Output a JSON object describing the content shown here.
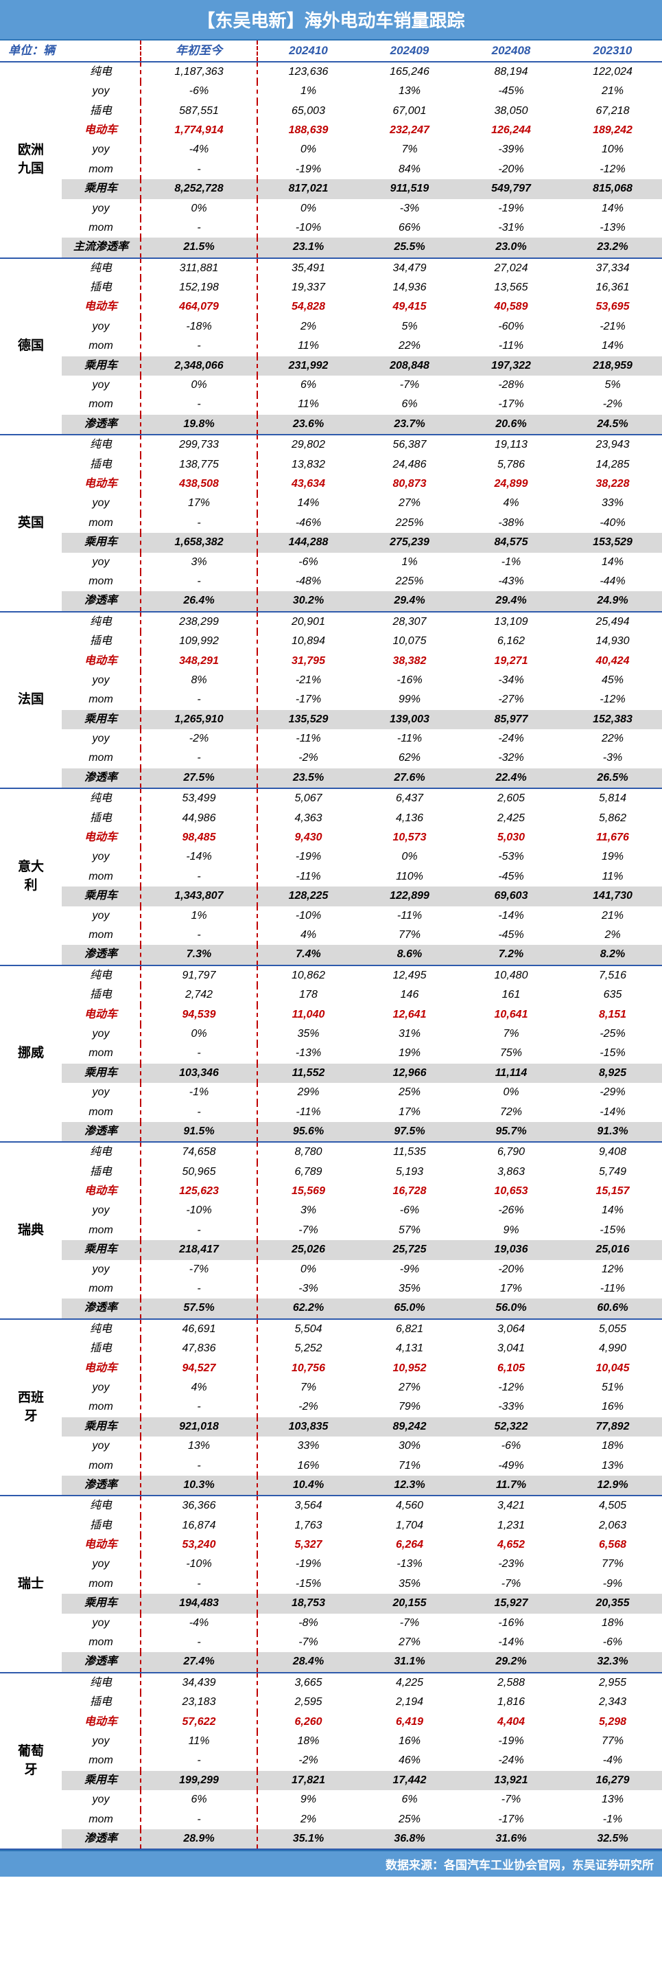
{
  "title": "【东吴电新】海外电动车销量跟踪",
  "unit_label": "单位：辆",
  "columns": [
    "年初至今",
    "202410",
    "202409",
    "202408",
    "202310"
  ],
  "footer": "数据来源：各国汽车工业协会官网，东吴证券研究所",
  "metrics_order": [
    "纯电",
    "yoy",
    "插电",
    "电动车",
    "yoy",
    "mom",
    "乘用车",
    "yoy",
    "mom",
    "主流渗透率"
  ],
  "regions": [
    {
      "name": "欧洲九国",
      "rows": [
        {
          "metric": "纯电",
          "vals": [
            "1,187,363",
            "123,636",
            "165,246",
            "88,194",
            "122,024"
          ],
          "style": ""
        },
        {
          "metric": "yoy",
          "vals": [
            "-6%",
            "1%",
            "13%",
            "-45%",
            "21%"
          ],
          "style": ""
        },
        {
          "metric": "插电",
          "vals": [
            "587,551",
            "65,003",
            "67,001",
            "38,050",
            "67,218"
          ],
          "style": ""
        },
        {
          "metric": "电动车",
          "vals": [
            "1,774,914",
            "188,639",
            "232,247",
            "126,244",
            "189,242"
          ],
          "style": "red"
        },
        {
          "metric": "yoy",
          "vals": [
            "-4%",
            "0%",
            "7%",
            "-39%",
            "10%"
          ],
          "style": ""
        },
        {
          "metric": "mom",
          "vals": [
            "-",
            "-19%",
            "84%",
            "-20%",
            "-12%"
          ],
          "style": ""
        },
        {
          "metric": "乘用车",
          "vals": [
            "8,252,728",
            "817,021",
            "911,519",
            "549,797",
            "815,068"
          ],
          "style": "gray"
        },
        {
          "metric": "yoy",
          "vals": [
            "0%",
            "0%",
            "-3%",
            "-19%",
            "14%"
          ],
          "style": ""
        },
        {
          "metric": "mom",
          "vals": [
            "-",
            "-10%",
            "66%",
            "-31%",
            "-13%"
          ],
          "style": ""
        },
        {
          "metric": "主流渗透率",
          "vals": [
            "21.5%",
            "23.1%",
            "25.5%",
            "23.0%",
            "23.2%"
          ],
          "style": "pen"
        }
      ]
    },
    {
      "name": "德国",
      "rows": [
        {
          "metric": "纯电",
          "vals": [
            "311,881",
            "35,491",
            "34,479",
            "27,024",
            "37,334"
          ],
          "style": ""
        },
        {
          "metric": "插电",
          "vals": [
            "152,198",
            "19,337",
            "14,936",
            "13,565",
            "16,361"
          ],
          "style": ""
        },
        {
          "metric": "电动车",
          "vals": [
            "464,079",
            "54,828",
            "49,415",
            "40,589",
            "53,695"
          ],
          "style": "red"
        },
        {
          "metric": "yoy",
          "vals": [
            "-18%",
            "2%",
            "5%",
            "-60%",
            "-21%"
          ],
          "style": ""
        },
        {
          "metric": "mom",
          "vals": [
            "-",
            "11%",
            "22%",
            "-11%",
            "14%"
          ],
          "style": ""
        },
        {
          "metric": "乘用车",
          "vals": [
            "2,348,066",
            "231,992",
            "208,848",
            "197,322",
            "218,959"
          ],
          "style": "gray"
        },
        {
          "metric": "yoy",
          "vals": [
            "0%",
            "6%",
            "-7%",
            "-28%",
            "5%"
          ],
          "style": ""
        },
        {
          "metric": "mom",
          "vals": [
            "-",
            "11%",
            "6%",
            "-17%",
            "-2%"
          ],
          "style": ""
        },
        {
          "metric": "渗透率",
          "vals": [
            "19.8%",
            "23.6%",
            "23.7%",
            "20.6%",
            "24.5%"
          ],
          "style": "pen"
        }
      ]
    },
    {
      "name": "英国",
      "rows": [
        {
          "metric": "纯电",
          "vals": [
            "299,733",
            "29,802",
            "56,387",
            "19,113",
            "23,943"
          ],
          "style": ""
        },
        {
          "metric": "插电",
          "vals": [
            "138,775",
            "13,832",
            "24,486",
            "5,786",
            "14,285"
          ],
          "style": ""
        },
        {
          "metric": "电动车",
          "vals": [
            "438,508",
            "43,634",
            "80,873",
            "24,899",
            "38,228"
          ],
          "style": "red"
        },
        {
          "metric": "yoy",
          "vals": [
            "17%",
            "14%",
            "27%",
            "4%",
            "33%"
          ],
          "style": ""
        },
        {
          "metric": "mom",
          "vals": [
            "-",
            "-46%",
            "225%",
            "-38%",
            "-40%"
          ],
          "style": ""
        },
        {
          "metric": "乘用车",
          "vals": [
            "1,658,382",
            "144,288",
            "275,239",
            "84,575",
            "153,529"
          ],
          "style": "gray"
        },
        {
          "metric": "yoy",
          "vals": [
            "3%",
            "-6%",
            "1%",
            "-1%",
            "14%"
          ],
          "style": ""
        },
        {
          "metric": "mom",
          "vals": [
            "-",
            "-48%",
            "225%",
            "-43%",
            "-44%"
          ],
          "style": ""
        },
        {
          "metric": "渗透率",
          "vals": [
            "26.4%",
            "30.2%",
            "29.4%",
            "29.4%",
            "24.9%"
          ],
          "style": "pen"
        }
      ]
    },
    {
      "name": "法国",
      "rows": [
        {
          "metric": "纯电",
          "vals": [
            "238,299",
            "20,901",
            "28,307",
            "13,109",
            "25,494"
          ],
          "style": ""
        },
        {
          "metric": "插电",
          "vals": [
            "109,992",
            "10,894",
            "10,075",
            "6,162",
            "14,930"
          ],
          "style": ""
        },
        {
          "metric": "电动车",
          "vals": [
            "348,291",
            "31,795",
            "38,382",
            "19,271",
            "40,424"
          ],
          "style": "red"
        },
        {
          "metric": "yoy",
          "vals": [
            "8%",
            "-21%",
            "-16%",
            "-34%",
            "45%"
          ],
          "style": ""
        },
        {
          "metric": "mom",
          "vals": [
            "-",
            "-17%",
            "99%",
            "-27%",
            "-12%"
          ],
          "style": ""
        },
        {
          "metric": "乘用车",
          "vals": [
            "1,265,910",
            "135,529",
            "139,003",
            "85,977",
            "152,383"
          ],
          "style": "gray"
        },
        {
          "metric": "yoy",
          "vals": [
            "-2%",
            "-11%",
            "-11%",
            "-24%",
            "22%"
          ],
          "style": ""
        },
        {
          "metric": "mom",
          "vals": [
            "-",
            "-2%",
            "62%",
            "-32%",
            "-3%"
          ],
          "style": ""
        },
        {
          "metric": "渗透率",
          "vals": [
            "27.5%",
            "23.5%",
            "27.6%",
            "22.4%",
            "26.5%"
          ],
          "style": "pen"
        }
      ]
    },
    {
      "name": "意大利",
      "rows": [
        {
          "metric": "纯电",
          "vals": [
            "53,499",
            "5,067",
            "6,437",
            "2,605",
            "5,814"
          ],
          "style": ""
        },
        {
          "metric": "插电",
          "vals": [
            "44,986",
            "4,363",
            "4,136",
            "2,425",
            "5,862"
          ],
          "style": ""
        },
        {
          "metric": "电动车",
          "vals": [
            "98,485",
            "9,430",
            "10,573",
            "5,030",
            "11,676"
          ],
          "style": "red"
        },
        {
          "metric": "yoy",
          "vals": [
            "-14%",
            "-19%",
            "0%",
            "-53%",
            "19%"
          ],
          "style": ""
        },
        {
          "metric": "mom",
          "vals": [
            "-",
            "-11%",
            "110%",
            "-45%",
            "11%"
          ],
          "style": ""
        },
        {
          "metric": "乘用车",
          "vals": [
            "1,343,807",
            "128,225",
            "122,899",
            "69,603",
            "141,730"
          ],
          "style": "gray"
        },
        {
          "metric": "yoy",
          "vals": [
            "1%",
            "-10%",
            "-11%",
            "-14%",
            "21%"
          ],
          "style": ""
        },
        {
          "metric": "mom",
          "vals": [
            "-",
            "4%",
            "77%",
            "-45%",
            "2%"
          ],
          "style": ""
        },
        {
          "metric": "渗透率",
          "vals": [
            "7.3%",
            "7.4%",
            "8.6%",
            "7.2%",
            "8.2%"
          ],
          "style": "pen"
        }
      ]
    },
    {
      "name": "挪威",
      "rows": [
        {
          "metric": "纯电",
          "vals": [
            "91,797",
            "10,862",
            "12,495",
            "10,480",
            "7,516"
          ],
          "style": ""
        },
        {
          "metric": "插电",
          "vals": [
            "2,742",
            "178",
            "146",
            "161",
            "635"
          ],
          "style": ""
        },
        {
          "metric": "电动车",
          "vals": [
            "94,539",
            "11,040",
            "12,641",
            "10,641",
            "8,151"
          ],
          "style": "red"
        },
        {
          "metric": "yoy",
          "vals": [
            "0%",
            "35%",
            "31%",
            "7%",
            "-25%"
          ],
          "style": ""
        },
        {
          "metric": "mom",
          "vals": [
            "-",
            "-13%",
            "19%",
            "75%",
            "-15%"
          ],
          "style": ""
        },
        {
          "metric": "乘用车",
          "vals": [
            "103,346",
            "11,552",
            "12,966",
            "11,114",
            "8,925"
          ],
          "style": "gray"
        },
        {
          "metric": "yoy",
          "vals": [
            "-1%",
            "29%",
            "25%",
            "0%",
            "-29%"
          ],
          "style": ""
        },
        {
          "metric": "mom",
          "vals": [
            "-",
            "-11%",
            "17%",
            "72%",
            "-14%"
          ],
          "style": ""
        },
        {
          "metric": "渗透率",
          "vals": [
            "91.5%",
            "95.6%",
            "97.5%",
            "95.7%",
            "91.3%"
          ],
          "style": "pen"
        }
      ]
    },
    {
      "name": "瑞典",
      "rows": [
        {
          "metric": "纯电",
          "vals": [
            "74,658",
            "8,780",
            "11,535",
            "6,790",
            "9,408"
          ],
          "style": ""
        },
        {
          "metric": "插电",
          "vals": [
            "50,965",
            "6,789",
            "5,193",
            "3,863",
            "5,749"
          ],
          "style": ""
        },
        {
          "metric": "电动车",
          "vals": [
            "125,623",
            "15,569",
            "16,728",
            "10,653",
            "15,157"
          ],
          "style": "red"
        },
        {
          "metric": "yoy",
          "vals": [
            "-10%",
            "3%",
            "-6%",
            "-26%",
            "14%"
          ],
          "style": ""
        },
        {
          "metric": "mom",
          "vals": [
            "-",
            "-7%",
            "57%",
            "9%",
            "-15%"
          ],
          "style": ""
        },
        {
          "metric": "乘用车",
          "vals": [
            "218,417",
            "25,026",
            "25,725",
            "19,036",
            "25,016"
          ],
          "style": "gray"
        },
        {
          "metric": "yoy",
          "vals": [
            "-7%",
            "0%",
            "-9%",
            "-20%",
            "12%"
          ],
          "style": ""
        },
        {
          "metric": "mom",
          "vals": [
            "-",
            "-3%",
            "35%",
            "17%",
            "-11%"
          ],
          "style": ""
        },
        {
          "metric": "渗透率",
          "vals": [
            "57.5%",
            "62.2%",
            "65.0%",
            "56.0%",
            "60.6%"
          ],
          "style": "pen"
        }
      ]
    },
    {
      "name": "西班牙",
      "rows": [
        {
          "metric": "纯电",
          "vals": [
            "46,691",
            "5,504",
            "6,821",
            "3,064",
            "5,055"
          ],
          "style": ""
        },
        {
          "metric": "插电",
          "vals": [
            "47,836",
            "5,252",
            "4,131",
            "3,041",
            "4,990"
          ],
          "style": ""
        },
        {
          "metric": "电动车",
          "vals": [
            "94,527",
            "10,756",
            "10,952",
            "6,105",
            "10,045"
          ],
          "style": "red"
        },
        {
          "metric": "yoy",
          "vals": [
            "4%",
            "7%",
            "27%",
            "-12%",
            "51%"
          ],
          "style": ""
        },
        {
          "metric": "mom",
          "vals": [
            "-",
            "-2%",
            "79%",
            "-33%",
            "16%"
          ],
          "style": ""
        },
        {
          "metric": "乘用车",
          "vals": [
            "921,018",
            "103,835",
            "89,242",
            "52,322",
            "77,892"
          ],
          "style": "gray"
        },
        {
          "metric": "yoy",
          "vals": [
            "13%",
            "33%",
            "30%",
            "-6%",
            "18%"
          ],
          "style": ""
        },
        {
          "metric": "mom",
          "vals": [
            "-",
            "16%",
            "71%",
            "-49%",
            "13%"
          ],
          "style": ""
        },
        {
          "metric": "渗透率",
          "vals": [
            "10.3%",
            "10.4%",
            "12.3%",
            "11.7%",
            "12.9%"
          ],
          "style": "pen"
        }
      ]
    },
    {
      "name": "瑞士",
      "rows": [
        {
          "metric": "纯电",
          "vals": [
            "36,366",
            "3,564",
            "4,560",
            "3,421",
            "4,505"
          ],
          "style": ""
        },
        {
          "metric": "插电",
          "vals": [
            "16,874",
            "1,763",
            "1,704",
            "1,231",
            "2,063"
          ],
          "style": ""
        },
        {
          "metric": "电动车",
          "vals": [
            "53,240",
            "5,327",
            "6,264",
            "4,652",
            "6,568"
          ],
          "style": "red"
        },
        {
          "metric": "yoy",
          "vals": [
            "-10%",
            "-19%",
            "-13%",
            "-23%",
            "77%"
          ],
          "style": ""
        },
        {
          "metric": "mom",
          "vals": [
            "-",
            "-15%",
            "35%",
            "-7%",
            "-9%"
          ],
          "style": ""
        },
        {
          "metric": "乘用车",
          "vals": [
            "194,483",
            "18,753",
            "20,155",
            "15,927",
            "20,355"
          ],
          "style": "gray"
        },
        {
          "metric": "yoy",
          "vals": [
            "-4%",
            "-8%",
            "-7%",
            "-16%",
            "18%"
          ],
          "style": ""
        },
        {
          "metric": "mom",
          "vals": [
            "-",
            "-7%",
            "27%",
            "-14%",
            "-6%"
          ],
          "style": ""
        },
        {
          "metric": "渗透率",
          "vals": [
            "27.4%",
            "28.4%",
            "31.1%",
            "29.2%",
            "32.3%"
          ],
          "style": "pen"
        }
      ]
    },
    {
      "name": "葡萄牙",
      "rows": [
        {
          "metric": "纯电",
          "vals": [
            "34,439",
            "3,665",
            "4,225",
            "2,588",
            "2,955"
          ],
          "style": ""
        },
        {
          "metric": "插电",
          "vals": [
            "23,183",
            "2,595",
            "2,194",
            "1,816",
            "2,343"
          ],
          "style": ""
        },
        {
          "metric": "电动车",
          "vals": [
            "57,622",
            "6,260",
            "6,419",
            "4,404",
            "5,298"
          ],
          "style": "red"
        },
        {
          "metric": "yoy",
          "vals": [
            "11%",
            "18%",
            "16%",
            "-19%",
            "77%"
          ],
          "style": ""
        },
        {
          "metric": "mom",
          "vals": [
            "-",
            "-2%",
            "46%",
            "-24%",
            "-4%"
          ],
          "style": ""
        },
        {
          "metric": "乘用车",
          "vals": [
            "199,299",
            "17,821",
            "17,442",
            "13,921",
            "16,279"
          ],
          "style": "gray"
        },
        {
          "metric": "yoy",
          "vals": [
            "6%",
            "9%",
            "6%",
            "-7%",
            "13%"
          ],
          "style": ""
        },
        {
          "metric": "mom",
          "vals": [
            "-",
            "2%",
            "25%",
            "-17%",
            "-1%"
          ],
          "style": ""
        },
        {
          "metric": "渗透率",
          "vals": [
            "28.9%",
            "35.1%",
            "36.8%",
            "31.6%",
            "32.5%"
          ],
          "style": "pen"
        }
      ]
    }
  ]
}
